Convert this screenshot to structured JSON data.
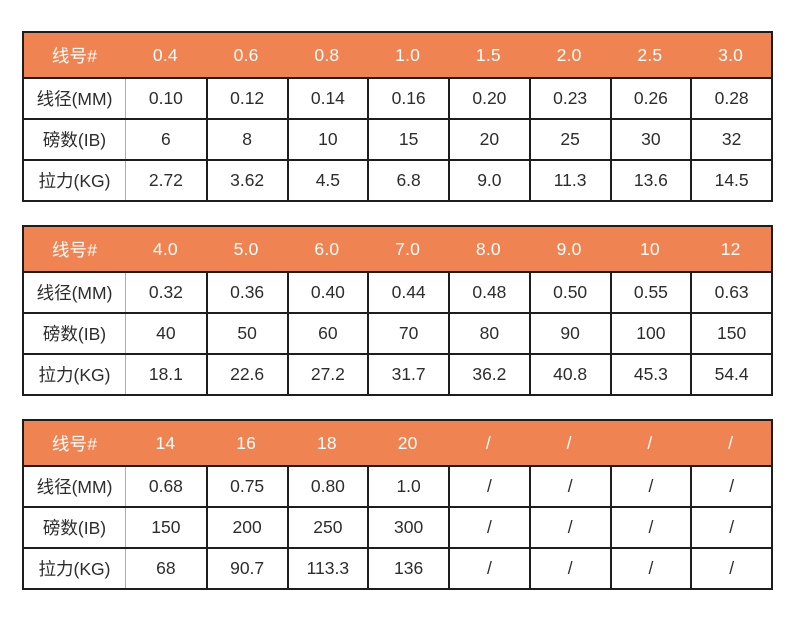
{
  "colors": {
    "background": "#FFFFFF",
    "header_bg": "#EF8352",
    "header_text": "#FFFFFF",
    "body_text": "#2D2D2D",
    "border_dark": "#1D1D1D",
    "divider_light": "#ADADAD"
  },
  "chart_data": [
    {
      "type": "table",
      "header": {
        "label": "线号#",
        "values": [
          "0.4",
          "0.6",
          "0.8",
          "1.0",
          "1.5",
          "2.0",
          "2.5",
          "3.0"
        ]
      },
      "rows": [
        {
          "label": "线径(MM)",
          "values": [
            "0.10",
            "0.12",
            "0.14",
            "0.16",
            "0.20",
            "0.23",
            "0.26",
            "0.28"
          ]
        },
        {
          "label": "磅数(IB)",
          "values": [
            "6",
            "8",
            "10",
            "15",
            "20",
            "25",
            "30",
            "32"
          ]
        },
        {
          "label": "拉力(KG)",
          "values": [
            "2.72",
            "3.62",
            "4.5",
            "6.8",
            "9.0",
            "11.3",
            "13.6",
            "14.5"
          ]
        }
      ]
    },
    {
      "type": "table",
      "header": {
        "label": "线号#",
        "values": [
          "4.0",
          "5.0",
          "6.0",
          "7.0",
          "8.0",
          "9.0",
          "10",
          "12"
        ]
      },
      "rows": [
        {
          "label": "线径(MM)",
          "values": [
            "0.32",
            "0.36",
            "0.40",
            "0.44",
            "0.48",
            "0.50",
            "0.55",
            "0.63"
          ]
        },
        {
          "label": "磅数(IB)",
          "values": [
            "40",
            "50",
            "60",
            "70",
            "80",
            "90",
            "100",
            "150"
          ]
        },
        {
          "label": "拉力(KG)",
          "values": [
            "18.1",
            "22.6",
            "27.2",
            "31.7",
            "36.2",
            "40.8",
            "45.3",
            "54.4"
          ]
        }
      ]
    },
    {
      "type": "table",
      "header": {
        "label": "线号#",
        "values": [
          "14",
          "16",
          "18",
          "20",
          "/",
          "/",
          "/",
          "/"
        ]
      },
      "rows": [
        {
          "label": "线径(MM)",
          "values": [
            "0.68",
            "0.75",
            "0.80",
            "1.0",
            "/",
            "/",
            "/",
            "/"
          ]
        },
        {
          "label": "磅数(IB)",
          "values": [
            "150",
            "200",
            "250",
            "300",
            "/",
            "/",
            "/",
            "/"
          ]
        },
        {
          "label": "拉力(KG)",
          "values": [
            "68",
            "90.7",
            "113.3",
            "136",
            "/",
            "/",
            "/",
            "/"
          ]
        }
      ]
    }
  ]
}
